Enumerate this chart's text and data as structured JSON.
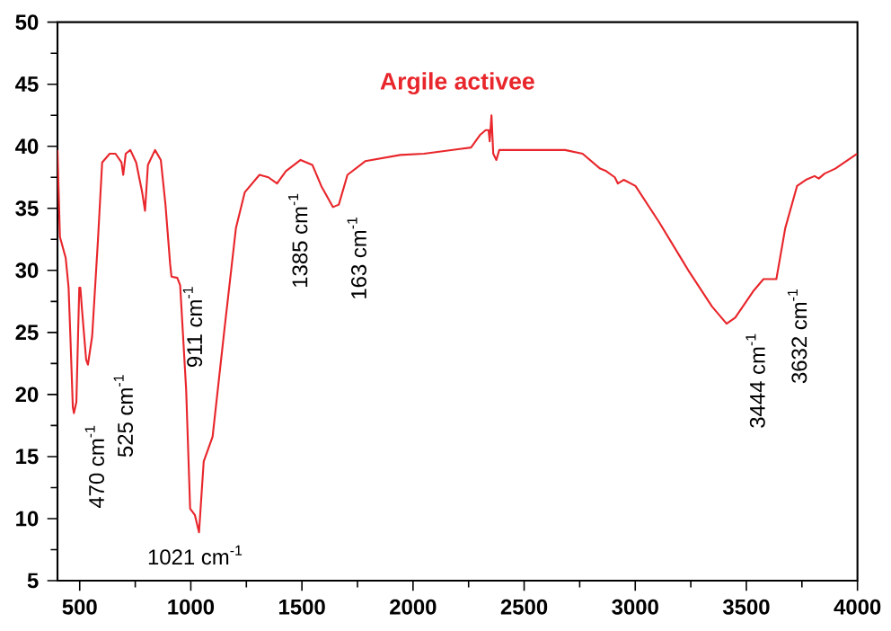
{
  "chart_data": {
    "type": "line",
    "title": "Argile activee",
    "x": [
      400,
      411,
      437,
      450,
      458,
      469,
      474,
      485,
      498,
      503,
      511,
      529,
      537,
      556,
      582,
      601,
      635,
      661,
      688,
      696,
      707,
      728,
      754,
      781,
      794,
      807,
      839,
      865,
      886,
      907,
      913,
      939,
      952,
      979,
      997,
      1018,
      1037,
      1058,
      1098,
      1151,
      1203,
      1243,
      1309,
      1349,
      1388,
      1428,
      1494,
      1547,
      1587,
      1640,
      1666,
      1705,
      1785,
      1943,
      2049,
      2261,
      2301,
      2327,
      2340,
      2345,
      2353,
      2361,
      2375,
      2388,
      2684,
      2763,
      2842,
      2869,
      2908,
      2922,
      2948,
      3001,
      3107,
      3239,
      3345,
      3411,
      3450,
      3530,
      3577,
      3635,
      3675,
      3728,
      3768,
      3807,
      3826,
      3852,
      3900,
      3998
    ],
    "values": [
      39.7,
      32.7,
      31,
      28.6,
      24.7,
      19,
      18.5,
      19.4,
      28.6,
      28.6,
      26.7,
      22.8,
      22.4,
      24.7,
      32.4,
      38.7,
      39.4,
      39.4,
      38.7,
      37.7,
      39.4,
      39.7,
      38.7,
      36.3,
      34.8,
      38.5,
      39.7,
      38.9,
      35.3,
      30.5,
      29.5,
      29.4,
      28.8,
      20.4,
      10.8,
      10.3,
      8.9,
      14.6,
      16.6,
      25.2,
      33.4,
      36.3,
      37.7,
      37.5,
      37,
      38,
      38.9,
      38.5,
      36.8,
      35.1,
      35.3,
      37.7,
      38.8,
      39.3,
      39.4,
      39.9,
      40.9,
      41.3,
      41.3,
      40.4,
      42.5,
      39.4,
      38.9,
      39.7,
      39.7,
      39.4,
      38.2,
      38,
      37.5,
      37,
      37.3,
      36.8,
      33.9,
      30,
      27.1,
      25.7,
      26.2,
      28.3,
      29.3,
      29.3,
      33.4,
      36.8,
      37.3,
      37.6,
      37.4,
      37.8,
      38.2,
      39.4
    ],
    "color": "#e8262b",
    "xlim": [
      400,
      4000
    ],
    "ylim": [
      5,
      50
    ],
    "xticks": [
      500,
      1000,
      1500,
      2000,
      2500,
      3000,
      3500,
      4000
    ],
    "yticks": [
      5,
      10,
      15,
      20,
      25,
      30,
      35,
      40,
      45,
      50
    ],
    "annotations": [
      {
        "text": "470 cm$^{-1}$",
        "x": 470,
        "y": 18.3
      },
      {
        "text": "525 cm$^{-1}$",
        "x": 525,
        "y": 22.4
      },
      {
        "text": "911 cm$^{-1}$",
        "x": 911,
        "y": 29.5
      },
      {
        "text": "1021 cm$^{-1}$",
        "x": 1021,
        "y": 8.9
      },
      {
        "text": "1385 cm$^{-1}$",
        "x": 1385,
        "y": 37
      },
      {
        "text": "163 cm$^{-1}$",
        "x": 1650,
        "y": 35.1
      },
      {
        "text": "3444 cm$^{-1}$",
        "x": 3444,
        "y": 25.7
      },
      {
        "text": "3632 cm$^{-1}$",
        "x": 3632,
        "y": 29.3
      }
    ]
  }
}
